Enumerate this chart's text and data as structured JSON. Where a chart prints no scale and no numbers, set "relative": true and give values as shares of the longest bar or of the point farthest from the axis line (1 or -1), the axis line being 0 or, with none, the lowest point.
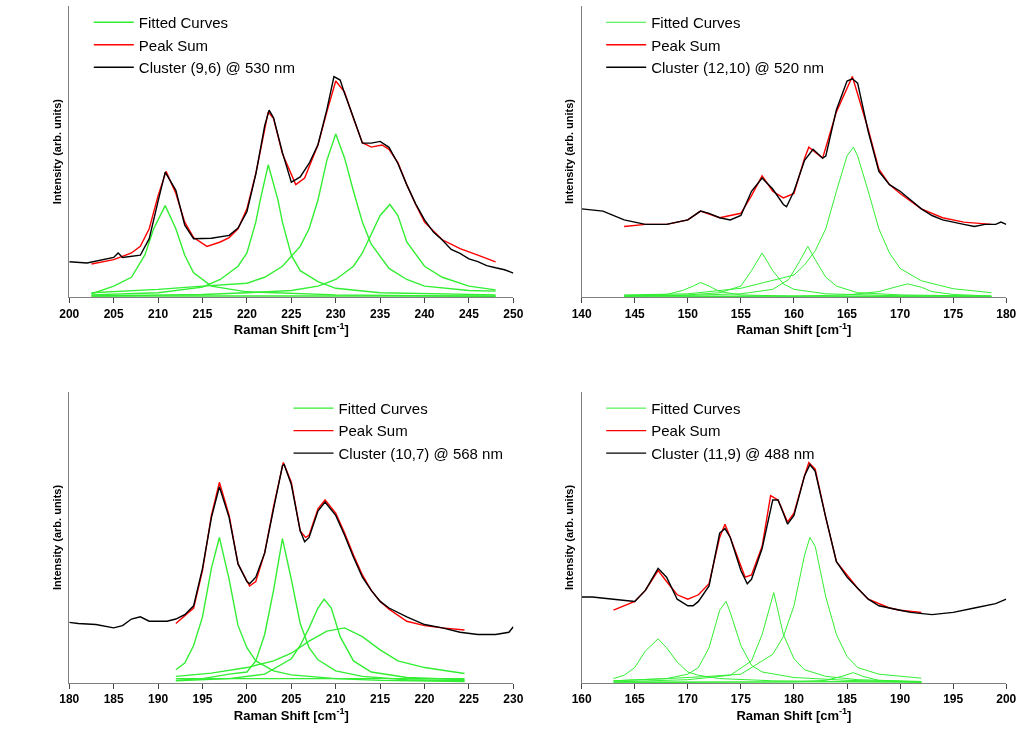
{
  "chart_data": [
    {
      "type": "line",
      "xlabel": "Raman Shift [cm$^{-1}$]",
      "ylabel": "Intensity (arb. units)",
      "xlim": [
        200,
        250
      ],
      "xticks": [
        200,
        205,
        210,
        215,
        220,
        225,
        230,
        235,
        240,
        245,
        250
      ],
      "relative": true,
      "tick_labels": "x",
      "legend": "top left",
      "series": [
        {
          "name": "Fitted Curves",
          "color": "#33ee33",
          "x": [
            202.5,
            205,
            207,
            208.5,
            209.5,
            210.8,
            212,
            213,
            214,
            216,
            220,
            230,
            248
          ],
          "values": [
            0.015,
            0.05,
            0.09,
            0.19,
            0.31,
            0.415,
            0.31,
            0.19,
            0.11,
            0.05,
            0.024,
            0.01,
            0.003
          ]
        },
        {
          "color": "#33ee33",
          "x": [
            202.5,
            210,
            215,
            217,
            219,
            220,
            221,
            221.5,
            222.4,
            223.5,
            224,
            225,
            226,
            228,
            230,
            235,
            248
          ],
          "values": [
            0.01,
            0.02,
            0.045,
            0.08,
            0.14,
            0.2,
            0.34,
            0.44,
            0.6,
            0.44,
            0.34,
            0.19,
            0.12,
            0.07,
            0.04,
            0.02,
            0.01
          ]
        },
        {
          "color": "#33ee33",
          "x": [
            202.5,
            210,
            215,
            220,
            222,
            224,
            226,
            227,
            228,
            229,
            230,
            231,
            232,
            233,
            234,
            236,
            238,
            240,
            245,
            248
          ],
          "values": [
            0.02,
            0.035,
            0.05,
            0.063,
            0.09,
            0.14,
            0.23,
            0.31,
            0.44,
            0.62,
            0.74,
            0.63,
            0.48,
            0.34,
            0.24,
            0.13,
            0.08,
            0.05,
            0.03,
            0.027
          ]
        },
        {
          "color": "#33ee33",
          "x": [
            202.5,
            215,
            220,
            225,
            228,
            230,
            232,
            233,
            235,
            236.1,
            237,
            238,
            240,
            242,
            245,
            248
          ],
          "values": [
            0.005,
            0.012,
            0.02,
            0.03,
            0.05,
            0.08,
            0.14,
            0.2,
            0.37,
            0.42,
            0.37,
            0.25,
            0.14,
            0.09,
            0.05,
            0.033
          ]
        },
        {
          "color": "#33ee33",
          "x": [
            202.5,
            248
          ],
          "values": [
            0.005,
            0.005
          ]
        },
        {
          "name": "Peak Sum",
          "color": "#ff0000",
          "x": [
            202.5,
            205,
            207,
            208,
            209,
            210,
            210.9,
            212,
            213,
            214,
            215.5,
            217,
            218,
            219,
            220,
            221,
            222.4,
            223,
            224,
            225.5,
            226.5,
            227,
            228,
            229,
            230,
            231,
            232,
            233,
            234,
            235.2,
            236,
            237,
            238,
            239,
            240,
            241,
            242,
            244,
            246,
            248
          ],
          "values": [
            0.15,
            0.17,
            0.2,
            0.23,
            0.31,
            0.46,
            0.57,
            0.47,
            0.34,
            0.27,
            0.23,
            0.25,
            0.27,
            0.31,
            0.4,
            0.56,
            0.84,
            0.81,
            0.65,
            0.51,
            0.54,
            0.59,
            0.69,
            0.84,
            0.98,
            0.93,
            0.81,
            0.7,
            0.68,
            0.69,
            0.67,
            0.61,
            0.51,
            0.42,
            0.34,
            0.3,
            0.26,
            0.22,
            0.19,
            0.16
          ]
        },
        {
          "name": "Cluster (9,6) @ 530 nm",
          "color": "#000000",
          "x": [
            200,
            202,
            205,
            205.5,
            206,
            208,
            209,
            210,
            210.8,
            212,
            213,
            214,
            216,
            218,
            219,
            220,
            221,
            222,
            222.5,
            223,
            224,
            225,
            225.5,
            226,
            227,
            228,
            229,
            229.8,
            230.5,
            231,
            232,
            233,
            234,
            235,
            236,
            237,
            238,
            239,
            240,
            241,
            242,
            243,
            244,
            245,
            246,
            247,
            248,
            249,
            250
          ],
          "values": [
            0.16,
            0.155,
            0.18,
            0.2,
            0.18,
            0.19,
            0.265,
            0.435,
            0.567,
            0.484,
            0.326,
            0.265,
            0.267,
            0.28,
            0.313,
            0.387,
            0.557,
            0.777,
            0.848,
            0.813,
            0.655,
            0.521,
            0.533,
            0.545,
            0.606,
            0.691,
            0.85,
            1.0,
            0.984,
            0.923,
            0.813,
            0.698,
            0.698,
            0.706,
            0.679,
            0.606,
            0.509,
            0.423,
            0.35,
            0.295,
            0.259,
            0.216,
            0.198,
            0.173,
            0.161,
            0.143,
            0.133,
            0.124,
            0.109
          ]
        }
      ]
    },
    {
      "type": "line",
      "xlabel": "Raman Shift [cm$^{-1}$]",
      "ylabel": "Intensity (arb. units)",
      "xlim": [
        140,
        180
      ],
      "xticks": [
        140,
        145,
        150,
        155,
        160,
        165,
        170,
        175,
        180
      ],
      "relative": true,
      "tick_labels": "x",
      "legend": "top left",
      "series": [
        {
          "name": "Fitted Curves",
          "color": "#33ee33",
          "x": [
            144,
            148,
            149.5,
            150.5,
            151.2,
            152,
            153,
            155,
            160,
            178.6
          ],
          "values": [
            0.005,
            0.012,
            0.03,
            0.05,
            0.066,
            0.05,
            0.025,
            0.01,
            0.004,
            0.001
          ]
        },
        {
          "color": "#33ee33",
          "x": [
            144,
            150,
            153,
            155,
            156,
            157,
            158,
            159,
            160,
            163,
            170,
            178.6
          ],
          "values": [
            0.005,
            0.01,
            0.02,
            0.05,
            0.12,
            0.2,
            0.12,
            0.06,
            0.035,
            0.015,
            0.006,
            0.003
          ]
        },
        {
          "color": "#33ee33",
          "x": [
            144,
            150,
            155,
            158,
            159.5,
            160.5,
            161.3,
            162,
            163,
            164,
            166,
            170,
            178.6
          ],
          "values": [
            0.004,
            0.008,
            0.015,
            0.035,
            0.08,
            0.16,
            0.23,
            0.17,
            0.09,
            0.05,
            0.02,
            0.01,
            0.004
          ]
        },
        {
          "color": "#33ee33",
          "x": [
            144,
            150,
            155,
            160,
            161,
            162,
            163,
            164,
            165,
            165.6,
            166,
            167,
            168,
            169,
            170,
            172,
            175,
            178.6
          ],
          "values": [
            0.01,
            0.015,
            0.04,
            0.1,
            0.146,
            0.21,
            0.31,
            0.48,
            0.64,
            0.68,
            0.64,
            0.48,
            0.31,
            0.2,
            0.13,
            0.074,
            0.038,
            0.02
          ]
        },
        {
          "color": "#33ee33",
          "x": [
            144,
            160,
            165,
            168,
            169.5,
            170.7,
            172,
            173,
            175,
            178.6
          ],
          "values": [
            0.001,
            0.004,
            0.01,
            0.025,
            0.045,
            0.06,
            0.045,
            0.025,
            0.012,
            0.005
          ]
        },
        {
          "color": "#33ee33",
          "x": [
            144,
            178.6
          ],
          "values": [
            0.005,
            0.005
          ]
        },
        {
          "name": "Peak Sum",
          "color": "#ff0000",
          "x": [
            144,
            146,
            148,
            150,
            151.2,
            153,
            155,
            156,
            157,
            158,
            159,
            160,
            161,
            161.4,
            162.7,
            164,
            165.5,
            167,
            168,
            169,
            170,
            172,
            174,
            176,
            178.6
          ],
          "values": [
            0.32,
            0.33,
            0.33,
            0.35,
            0.39,
            0.36,
            0.38,
            0.46,
            0.55,
            0.48,
            0.45,
            0.47,
            0.63,
            0.68,
            0.63,
            0.84,
            1.0,
            0.76,
            0.58,
            0.51,
            0.47,
            0.4,
            0.36,
            0.34,
            0.33
          ]
        },
        {
          "name": "Cluster (12,10) @ 520 nm",
          "color": "#000000",
          "x": [
            140,
            142,
            144,
            146,
            148,
            150,
            151.2,
            152,
            153,
            154,
            155,
            156,
            157,
            158,
            159,
            159.3,
            160,
            161,
            161.8,
            162.7,
            163,
            164,
            165,
            165.5,
            166,
            167,
            168,
            169,
            170,
            171,
            172,
            173,
            174,
            175,
            176,
            177,
            178,
            179,
            179.5,
            180
          ],
          "values": [
            0.4,
            0.39,
            0.35,
            0.33,
            0.33,
            0.35,
            0.39,
            0.38,
            0.36,
            0.35,
            0.37,
            0.48,
            0.54,
            0.49,
            0.42,
            0.41,
            0.48,
            0.62,
            0.67,
            0.63,
            0.64,
            0.85,
            0.98,
            0.99,
            0.97,
            0.75,
            0.57,
            0.51,
            0.48,
            0.44,
            0.4,
            0.37,
            0.35,
            0.34,
            0.33,
            0.32,
            0.33,
            0.33,
            0.34,
            0.33
          ]
        }
      ]
    },
    {
      "type": "line",
      "xlabel": "Raman Shift [cm$^{-1}$]",
      "ylabel": "Intensity (arb. units)",
      "xlim": [
        180,
        230
      ],
      "xticks": [
        180,
        185,
        190,
        195,
        200,
        205,
        210,
        215,
        220,
        225,
        230
      ],
      "relative": true,
      "tick_labels": "x",
      "legend": "top right",
      "series": [
        {
          "name": "Fitted Curves",
          "color": "#33ee33",
          "x": [
            192,
            193,
            194,
            195,
            196,
            196.9,
            198,
            199,
            200,
            201,
            203,
            205,
            210,
            215,
            224.5
          ],
          "values": [
            0.06,
            0.09,
            0.17,
            0.3,
            0.52,
            0.66,
            0.47,
            0.26,
            0.16,
            0.1,
            0.055,
            0.037,
            0.02,
            0.012,
            0.007
          ]
        },
        {
          "color": "#33ee33",
          "x": [
            192,
            195,
            198,
            200,
            201,
            202,
            203,
            204,
            205,
            206,
            207,
            208,
            210,
            213,
            218,
            224.5
          ],
          "values": [
            0.012,
            0.02,
            0.04,
            0.05,
            0.1,
            0.22,
            0.42,
            0.655,
            0.47,
            0.27,
            0.16,
            0.105,
            0.055,
            0.03,
            0.015,
            0.01
          ]
        },
        {
          "color": "#33ee33",
          "x": [
            192,
            198,
            202,
            205,
            206,
            207,
            208,
            208.7,
            209.5,
            210.5,
            212,
            214,
            218,
            224.5
          ],
          "values": [
            0.01,
            0.02,
            0.04,
            0.11,
            0.17,
            0.25,
            0.34,
            0.38,
            0.34,
            0.21,
            0.1,
            0.05,
            0.025,
            0.015
          ]
        },
        {
          "color": "#33ee33",
          "x": [
            192,
            196,
            200,
            203,
            205,
            207,
            209,
            211,
            213,
            215,
            217,
            220,
            224.5
          ],
          "values": [
            0.03,
            0.045,
            0.07,
            0.1,
            0.135,
            0.19,
            0.235,
            0.25,
            0.21,
            0.15,
            0.1,
            0.07,
            0.043
          ]
        },
        {
          "color": "#33ee33",
          "x": [
            192,
            224.5
          ],
          "values": [
            0.02,
            0.02
          ]
        },
        {
          "name": "Peak Sum",
          "color": "#ff0000",
          "x": [
            192,
            194,
            195,
            196,
            196.9,
            198,
            199,
            200.3,
            201,
            202,
            203,
            204.1,
            205,
            206,
            206.6,
            207,
            208,
            208.8,
            210,
            211,
            212,
            213,
            214,
            215,
            216,
            218,
            220,
            222,
            224.5
          ],
          "values": [
            0.27,
            0.34,
            0.51,
            0.76,
            0.91,
            0.76,
            0.54,
            0.44,
            0.46,
            0.59,
            0.8,
            1.0,
            0.91,
            0.69,
            0.66,
            0.67,
            0.79,
            0.83,
            0.77,
            0.68,
            0.58,
            0.49,
            0.42,
            0.37,
            0.335,
            0.28,
            0.26,
            0.25,
            0.24
          ]
        },
        {
          "name": "Cluster (10,7) @ 568 nm",
          "color": "#000000",
          "x": [
            180,
            181,
            183,
            185,
            186,
            187,
            188,
            189,
            190,
            191,
            192,
            193,
            194,
            195,
            196,
            196.9,
            198,
            199,
            200,
            200.3,
            201,
            202,
            203,
            204,
            204.2,
            205,
            206,
            206.5,
            207,
            208,
            208.8,
            210,
            211,
            212,
            213,
            214,
            215,
            216,
            218,
            220,
            222,
            224,
            226,
            228,
            229.5,
            230
          ],
          "values": [
            0.275,
            0.27,
            0.265,
            0.25,
            0.26,
            0.29,
            0.3,
            0.28,
            0.28,
            0.28,
            0.29,
            0.31,
            0.35,
            0.52,
            0.75,
            0.89,
            0.75,
            0.54,
            0.46,
            0.45,
            0.48,
            0.59,
            0.79,
            0.985,
            0.99,
            0.9,
            0.69,
            0.64,
            0.66,
            0.78,
            0.82,
            0.76,
            0.67,
            0.57,
            0.48,
            0.42,
            0.37,
            0.34,
            0.3,
            0.265,
            0.25,
            0.23,
            0.22,
            0.22,
            0.23,
            0.255
          ]
        }
      ]
    },
    {
      "type": "line",
      "xlabel": "Raman Shift [cm$^{-1}$]",
      "ylabel": "Intensity (arb. units)",
      "xlim": [
        160,
        200
      ],
      "xticks": [
        160,
        165,
        170,
        175,
        180,
        185,
        190,
        195,
        200
      ],
      "relative": true,
      "tick_labels": "x",
      "legend": "top left",
      "series": [
        {
          "name": "Fitted Curves",
          "color": "#33ee33",
          "x": [
            163,
            164,
            165,
            166,
            167.2,
            168,
            169,
            170,
            171,
            173,
            178,
            192
          ],
          "values": [
            0.02,
            0.035,
            0.07,
            0.145,
            0.2,
            0.16,
            0.095,
            0.05,
            0.035,
            0.02,
            0.01,
            0.003
          ]
        },
        {
          "color": "#33ee33",
          "x": [
            163,
            168,
            170,
            171,
            172,
            173,
            173.6,
            174,
            175,
            176,
            177,
            180,
            185,
            192
          ],
          "values": [
            0.01,
            0.02,
            0.04,
            0.07,
            0.16,
            0.33,
            0.37,
            0.32,
            0.17,
            0.08,
            0.05,
            0.025,
            0.012,
            0.005
          ]
        },
        {
          "color": "#33ee33",
          "x": [
            163,
            170,
            174,
            176,
            177,
            178.1,
            179,
            180,
            181,
            183,
            186,
            192
          ],
          "values": [
            0.005,
            0.015,
            0.035,
            0.1,
            0.22,
            0.41,
            0.22,
            0.11,
            0.06,
            0.03,
            0.015,
            0.007
          ]
        },
        {
          "color": "#33ee33",
          "x": [
            163,
            168,
            172,
            175,
            177,
            178,
            179,
            180,
            181,
            181.5,
            182,
            183,
            184,
            185,
            186,
            188,
            192
          ],
          "values": [
            0.01,
            0.02,
            0.03,
            0.04,
            0.1,
            0.13,
            0.21,
            0.35,
            0.58,
            0.66,
            0.62,
            0.39,
            0.22,
            0.12,
            0.07,
            0.04,
            0.022
          ]
        },
        {
          "color": "#33ee33",
          "x": [
            163,
            180,
            183,
            184.5,
            185.6,
            186.5,
            188,
            192
          ],
          "values": [
            0.001,
            0.005,
            0.012,
            0.03,
            0.047,
            0.03,
            0.012,
            0.004
          ]
        },
        {
          "color": "#33ee33",
          "x": [
            163,
            192
          ],
          "values": [
            0.005,
            0.005
          ]
        },
        {
          "name": "Peak Sum",
          "color": "#ff0000",
          "x": [
            163,
            165,
            166,
            167.2,
            168,
            169,
            170,
            171,
            172,
            173,
            173.5,
            174,
            175,
            175.4,
            176,
            177,
            177.8,
            178.5,
            179.4,
            180,
            181,
            181.4,
            182,
            183,
            184,
            185,
            186,
            187,
            189,
            190,
            192
          ],
          "values": [
            0.33,
            0.37,
            0.42,
            0.51,
            0.46,
            0.4,
            0.38,
            0.4,
            0.45,
            0.66,
            0.72,
            0.66,
            0.53,
            0.48,
            0.49,
            0.62,
            0.85,
            0.83,
            0.73,
            0.77,
            0.94,
            1.0,
            0.97,
            0.75,
            0.55,
            0.49,
            0.43,
            0.38,
            0.34,
            0.33,
            0.32
          ]
        },
        {
          "name": "Cluster (11,9) @ 488 nm",
          "color": "#000000",
          "x": [
            160,
            161,
            163,
            165,
            166,
            167.2,
            168,
            169,
            170,
            170.5,
            171,
            172,
            173,
            173.5,
            174,
            175,
            175.6,
            176,
            177,
            178,
            178.5,
            179,
            179.4,
            180,
            181,
            181.5,
            182,
            183,
            184,
            185,
            186,
            187,
            188,
            189,
            190,
            191,
            193,
            195,
            197,
            199,
            200
          ],
          "values": [
            0.39,
            0.39,
            0.38,
            0.37,
            0.42,
            0.52,
            0.48,
            0.38,
            0.35,
            0.35,
            0.37,
            0.44,
            0.68,
            0.7,
            0.66,
            0.51,
            0.45,
            0.47,
            0.61,
            0.83,
            0.83,
            0.77,
            0.72,
            0.76,
            0.94,
            0.99,
            0.96,
            0.75,
            0.55,
            0.48,
            0.43,
            0.38,
            0.35,
            0.34,
            0.33,
            0.32,
            0.31,
            0.32,
            0.34,
            0.36,
            0.38
          ]
        }
      ]
    }
  ]
}
